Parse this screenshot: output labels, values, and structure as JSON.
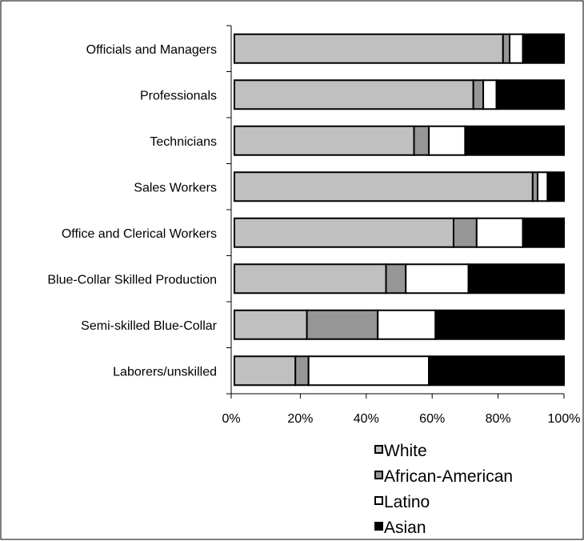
{
  "chart_data": {
    "type": "bar",
    "orientation": "horizontal",
    "stacked": "percent",
    "categories": [
      "Officials and Managers",
      "Professionals",
      "Technicians",
      "Sales Workers",
      "Office and Clerical Workers",
      "Blue-Collar Skilled Production",
      "Semi-skilled Blue-Collar",
      "Laborers/unskilled"
    ],
    "series": [
      {
        "name": "White",
        "color": "#c0c0c0",
        "values": [
          81.5,
          72.5,
          54.5,
          90.5,
          66.5,
          46,
          22,
          18.5
        ]
      },
      {
        "name": "African-American",
        "color": "#969696",
        "values": [
          2,
          3,
          4.5,
          1.5,
          7,
          6,
          21.5,
          4
        ]
      },
      {
        "name": "Latino",
        "color": "#ffffff",
        "values": [
          4,
          4,
          11,
          3,
          14,
          19,
          17.5,
          36.5
        ]
      },
      {
        "name": "Asian",
        "color": "#000000",
        "values": [
          12.5,
          20.5,
          30,
          5,
          12.5,
          29,
          39,
          41
        ]
      }
    ],
    "xlim": [
      0,
      100
    ],
    "xticks": [
      "0%",
      "20%",
      "40%",
      "60%",
      "80%",
      "100%"
    ],
    "title": "",
    "xlabel": "",
    "ylabel": "",
    "grid": false,
    "legend_position": "bottom"
  }
}
